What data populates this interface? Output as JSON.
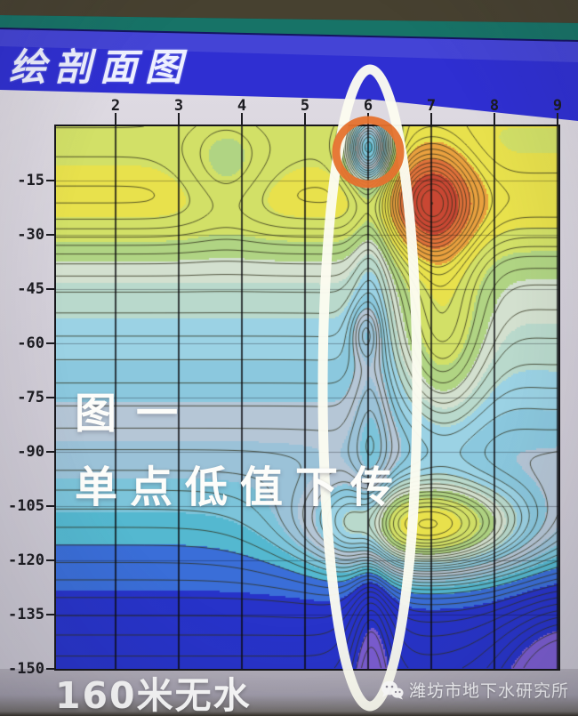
{
  "window": {
    "title": "绘剖面图"
  },
  "watermark": {
    "text": "潍坊市地下水研究所",
    "icon": "wechat-icon"
  },
  "chart_data": {
    "type": "heatmap",
    "subtype": "contour-cross-section-profile",
    "title": "绘剖面图",
    "xlabel": "",
    "ylabel": "",
    "x_ticks": [
      2,
      3,
      4,
      5,
      6,
      7,
      8,
      9
    ],
    "y_ticks": [
      -15,
      -30,
      -45,
      -60,
      -75,
      -90,
      -105,
      -120,
      -135,
      -150
    ],
    "x_range": [
      1.06,
      9.01
    ],
    "y_range": [
      0,
      -150
    ],
    "grid": "vertical line at every x tick, faint horizontal line every 15 depth units",
    "legend": "none",
    "contour_interval": 4.5,
    "contour_levels_min": -54,
    "contour_levels_max": 153,
    "color_scale": [
      {
        "min": 128,
        "color": "#c94733"
      },
      {
        "min": 112,
        "color": "#e0713a"
      },
      {
        "min": 97,
        "color": "#e9a03e"
      },
      {
        "min": 82,
        "color": "#e8e14c"
      },
      {
        "min": 70,
        "color": "#d2e067"
      },
      {
        "min": 60,
        "color": "#b0d483"
      },
      {
        "min": 52,
        "color": "#d3e0cf"
      },
      {
        "min": 44,
        "color": "#b9d9cc"
      },
      {
        "min": 36,
        "color": "#9bd2e4"
      },
      {
        "min": 28,
        "color": "#8bc8de"
      },
      {
        "min": 20,
        "color": "#b5c6d6"
      },
      {
        "min": 12,
        "color": "#9bc2d8"
      },
      {
        "min": 4,
        "color": "#7cc4da"
      },
      {
        "min": -4,
        "color": "#54b8d0"
      },
      {
        "min": -16,
        "color": "#3a6ed8"
      },
      {
        "min": -48,
        "color": "#2733c9"
      },
      {
        "min": -9999,
        "color": "#7a5cd0"
      }
    ],
    "field_model": {
      "base": {
        "offset": 80,
        "slope": 0.68,
        "surface_ridge": {
          "amp": 20,
          "center": 22,
          "width": 13
        },
        "deep_drop": {
          "amp": 12,
          "center": 150,
          "width": 40
        }
      },
      "features": [
        {
          "name": "shallow-high-orange-x7",
          "amp": 55,
          "s": 7.0,
          "sw": 0.38,
          "d": 21,
          "dw": 15
        },
        {
          "name": "surface-low-blue-x6",
          "amp": -65,
          "s": 6.0,
          "sw": 0.13,
          "d": 6,
          "dw": 9
        },
        {
          "name": "column-low-lens-x6",
          "amp": -15,
          "s": 6.05,
          "sw": 0.09,
          "d": 60,
          "dw": 999
        },
        {
          "name": "mid-small-lens-x6",
          "amp": -18,
          "s": 5.95,
          "sw": 0.05,
          "d": 57,
          "dw": 7
        },
        {
          "name": "deep-high-yellow-x7",
          "amp": 88,
          "s": 6.9,
          "sw": 2.6,
          "d": 111,
          "dw": 13
        },
        {
          "name": "right-mid-ridge",
          "amp": 34,
          "s": 7.15,
          "sw": 0.5,
          "d": 58,
          "dw": 30
        },
        {
          "name": "right-edge-lift",
          "amp": 10,
          "s": 9.0,
          "sw": 3.0,
          "d": 70,
          "dw": 45
        },
        {
          "name": "shallow-left-dip-x4",
          "amp": -14,
          "s": 3.75,
          "sw": 0.42,
          "d": 12,
          "dw": 16
        },
        {
          "name": "corner-low-purple",
          "amp": -34,
          "s": 9.2,
          "sw": 1.1,
          "d": 152,
          "dw": 22
        },
        {
          "name": "bottom-notch-x6",
          "amp": -10,
          "s": 6.05,
          "sw": 0.2,
          "d": 150,
          "dw": 30
        }
      ]
    },
    "annotations": {
      "figure_label": "图一",
      "callout": "单点低值下传",
      "bottom_note": "160米无水",
      "ellipse_color": "#fcfcf0",
      "circle_color": "#e5722e",
      "highlight": {
        "ellipse_center_x": 6,
        "ellipse_span_y": [
          0,
          -150
        ],
        "circle_center": {
          "x": 6,
          "y": -7
        }
      }
    }
  }
}
